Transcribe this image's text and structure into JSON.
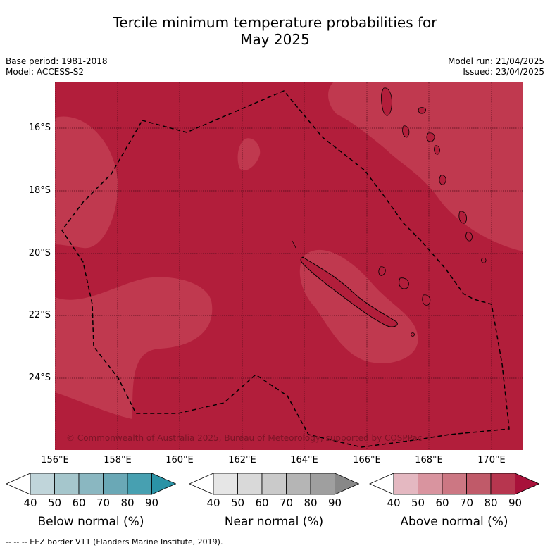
{
  "title_line1": "Tercile minimum temperature probabilities for",
  "title_line2": "May 2025",
  "meta_left": {
    "base_period": "Base period: 1981-2018",
    "model": "Model: ACCESS-S2"
  },
  "meta_right": {
    "model_run": "Model run: 21/04/2025",
    "issued": "Issued: 23/04/2025"
  },
  "lat_labels": [
    "16°S",
    "18°S",
    "20°S",
    "22°S",
    "24°S"
  ],
  "lon_labels": [
    "156°E",
    "158°E",
    "160°E",
    "162°E",
    "164°E",
    "166°E",
    "168°E",
    "170°E"
  ],
  "copyright": "© Commonwealth of Australia 2025, Bureau of Meteorology, supported by COSPPac",
  "colorbars": [
    {
      "title": "Below normal (%)",
      "ticks": [
        "40",
        "50",
        "60",
        "70",
        "80",
        "90"
      ],
      "colors": [
        "#ffffff",
        "#c0d5da",
        "#a5c6cc",
        "#8ab7c1",
        "#6aa8b6",
        "#47a0b1",
        "#2a93a6"
      ]
    },
    {
      "title": "Near normal (%)",
      "ticks": [
        "40",
        "50",
        "60",
        "70",
        "80",
        "90"
      ],
      "colors": [
        "#ffffff",
        "#e6e6e6",
        "#d9d9d9",
        "#cacaca",
        "#b5b5b5",
        "#9f9f9f",
        "#888888"
      ]
    },
    {
      "title": "Above normal (%)",
      "ticks": [
        "40",
        "50",
        "60",
        "70",
        "80",
        "90"
      ],
      "colors": [
        "#ffffff",
        "#e4b8c1",
        "#d9949f",
        "#cc7783",
        "#c05a69",
        "#b7364f",
        "#a8113a"
      ]
    }
  ],
  "colors": {
    "above_80_90": "#b21e3b",
    "above_70_80": "#c0394f",
    "eez_line": "#000000"
  },
  "footer": "--  --  -- EEZ border V11 (Flanders Marine Institute, 2019)."
}
